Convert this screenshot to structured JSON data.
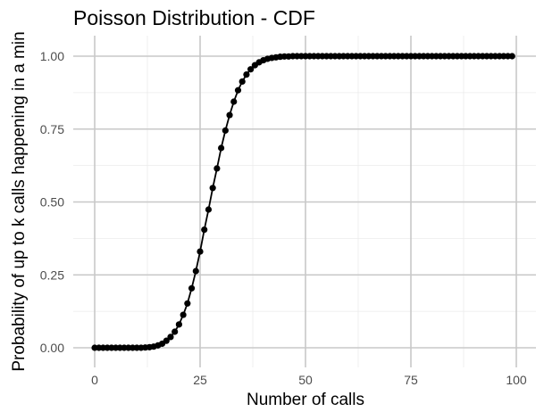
{
  "chart_data": {
    "type": "line",
    "title": "Poisson Distribution - CDF",
    "xlabel": "Number of calls",
    "ylabel": "Probability of up to k calls happening in a min",
    "xlim": [
      0,
      100
    ],
    "ylim": [
      0,
      1
    ],
    "x_ticks": [
      0,
      25,
      50,
      75,
      100
    ],
    "x_tick_labels": [
      "0",
      "25",
      "50",
      "75",
      "100"
    ],
    "y_ticks": [
      0,
      0.25,
      0.5,
      0.75,
      1
    ],
    "y_tick_labels": [
      "0.00",
      "0.25",
      "0.50",
      "0.75",
      "1.00"
    ],
    "grid": true,
    "series": [
      {
        "color": "#000000",
        "x": [
          0,
          1,
          2,
          3,
          4,
          5,
          6,
          7,
          8,
          9,
          10,
          11,
          12,
          13,
          14,
          15,
          16,
          17,
          18,
          19,
          20,
          21,
          22,
          23,
          24,
          25,
          26,
          27,
          28,
          29,
          30,
          31,
          32,
          33,
          34,
          35,
          36,
          37,
          38,
          39,
          40,
          41,
          42,
          43,
          44,
          45,
          46,
          47,
          48,
          49,
          50,
          51,
          52,
          53,
          54,
          55,
          56,
          57,
          58,
          59,
          60,
          61,
          62,
          63,
          64,
          65,
          66,
          67,
          68,
          69,
          70,
          71,
          72,
          73,
          74,
          75,
          76,
          77,
          78,
          79,
          80,
          81,
          82,
          83,
          84,
          85,
          86,
          87,
          88,
          89,
          90,
          91,
          92,
          93,
          94,
          95,
          96,
          97,
          98,
          99
        ],
        "y": [
          0,
          0,
          0,
          0,
          0,
          0,
          0,
          0,
          0,
          0,
          0,
          0,
          0.001,
          0.002,
          0.004,
          0.008,
          0.014,
          0.024,
          0.037,
          0.055,
          0.08,
          0.113,
          0.152,
          0.204,
          0.263,
          0.33,
          0.405,
          0.474,
          0.548,
          0.615,
          0.685,
          0.745,
          0.798,
          0.844,
          0.883,
          0.913,
          0.937,
          0.955,
          0.969,
          0.979,
          0.986,
          0.991,
          0.994,
          0.996,
          0.998,
          0.999,
          0.999,
          1,
          1,
          1,
          1,
          1,
          1,
          1,
          1,
          1,
          1,
          1,
          1,
          1,
          1,
          1,
          1,
          1,
          1,
          1,
          1,
          1,
          1,
          1,
          1,
          1,
          1,
          1,
          1,
          1,
          1,
          1,
          1,
          1,
          1,
          1,
          1,
          1,
          1,
          1,
          1,
          1,
          1,
          1,
          1,
          1,
          1,
          1,
          1,
          1,
          1,
          1,
          1,
          1
        ]
      }
    ]
  }
}
